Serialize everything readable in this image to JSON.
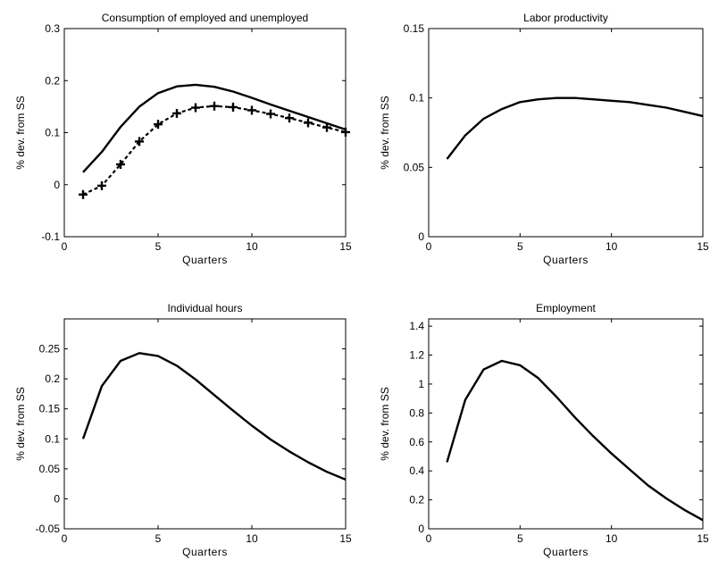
{
  "chart_data": [
    {
      "type": "line",
      "title": "Consumption of employed and unemployed",
      "xlabel": "Quarters",
      "ylabel": "% dev. from SS",
      "xlim": [
        0,
        15
      ],
      "ylim": [
        -0.1,
        0.3
      ],
      "xticks": [
        "0",
        "5",
        "10",
        "15"
      ],
      "yticks": [
        "-0.1",
        "0",
        "0.1",
        "0.2",
        "0.3"
      ],
      "x": [
        1,
        2,
        3,
        4,
        5,
        6,
        7,
        8,
        9,
        10,
        11,
        12,
        13,
        14,
        15
      ],
      "series": [
        {
          "style": "solid",
          "values": [
            0.024,
            0.063,
            0.111,
            0.15,
            0.176,
            0.189,
            0.192,
            0.188,
            0.179,
            0.167,
            0.154,
            0.142,
            0.13,
            0.118,
            0.106
          ]
        },
        {
          "style": "dashed-plus",
          "values": [
            -0.019,
            -0.002,
            0.039,
            0.083,
            0.116,
            0.137,
            0.148,
            0.151,
            0.149,
            0.143,
            0.136,
            0.128,
            0.119,
            0.11,
            0.101
          ]
        }
      ],
      "grid": false
    },
    {
      "type": "line",
      "title": "Labor productivity",
      "xlabel": "Quarters",
      "ylabel": "% dev. from SS",
      "xlim": [
        0,
        15
      ],
      "ylim": [
        0,
        0.15
      ],
      "xticks": [
        "0",
        "5",
        "10",
        "15"
      ],
      "yticks": [
        "0",
        "0.05",
        "0.1",
        "0.15"
      ],
      "x": [
        1,
        2,
        3,
        4,
        5,
        6,
        7,
        8,
        9,
        10,
        11,
        12,
        13,
        14,
        15
      ],
      "series": [
        {
          "style": "solid",
          "values": [
            0.056,
            0.073,
            0.085,
            0.092,
            0.097,
            0.099,
            0.1,
            0.1,
            0.099,
            0.098,
            0.097,
            0.095,
            0.093,
            0.09,
            0.087
          ]
        }
      ],
      "grid": false
    },
    {
      "type": "line",
      "title": "Individual hours",
      "xlabel": "Quarters",
      "ylabel": "% dev. from SS",
      "xlim": [
        0,
        15
      ],
      "ylim": [
        -0.05,
        0.3
      ],
      "xticks": [
        "0",
        "5",
        "10",
        "15"
      ],
      "yticks": [
        "-0.05",
        "0",
        "0.05",
        "0.1",
        "0.15",
        "0.2",
        "0.25"
      ],
      "x": [
        1,
        2,
        3,
        4,
        5,
        6,
        7,
        8,
        9,
        10,
        11,
        12,
        13,
        14,
        15
      ],
      "series": [
        {
          "style": "solid",
          "values": [
            0.1,
            0.188,
            0.23,
            0.243,
            0.238,
            0.222,
            0.199,
            0.173,
            0.147,
            0.122,
            0.099,
            0.079,
            0.061,
            0.045,
            0.032
          ]
        }
      ],
      "grid": false
    },
    {
      "type": "line",
      "title": "Employment",
      "xlabel": "Quarters",
      "ylabel": "% dev. from SS",
      "xlim": [
        0,
        15
      ],
      "ylim": [
        0,
        1.45
      ],
      "xticks": [
        "0",
        "5",
        "10",
        "15"
      ],
      "yticks": [
        "0",
        "0.2",
        "0.4",
        "0.6",
        "0.8",
        "1",
        "1.2",
        "1.4"
      ],
      "x": [
        1,
        2,
        3,
        4,
        5,
        6,
        7,
        8,
        9,
        10,
        11,
        12,
        13,
        14,
        15
      ],
      "series": [
        {
          "style": "solid",
          "values": [
            0.46,
            0.89,
            1.1,
            1.16,
            1.13,
            1.04,
            0.91,
            0.77,
            0.64,
            0.52,
            0.41,
            0.3,
            0.21,
            0.13,
            0.06
          ]
        }
      ],
      "grid": false
    }
  ]
}
